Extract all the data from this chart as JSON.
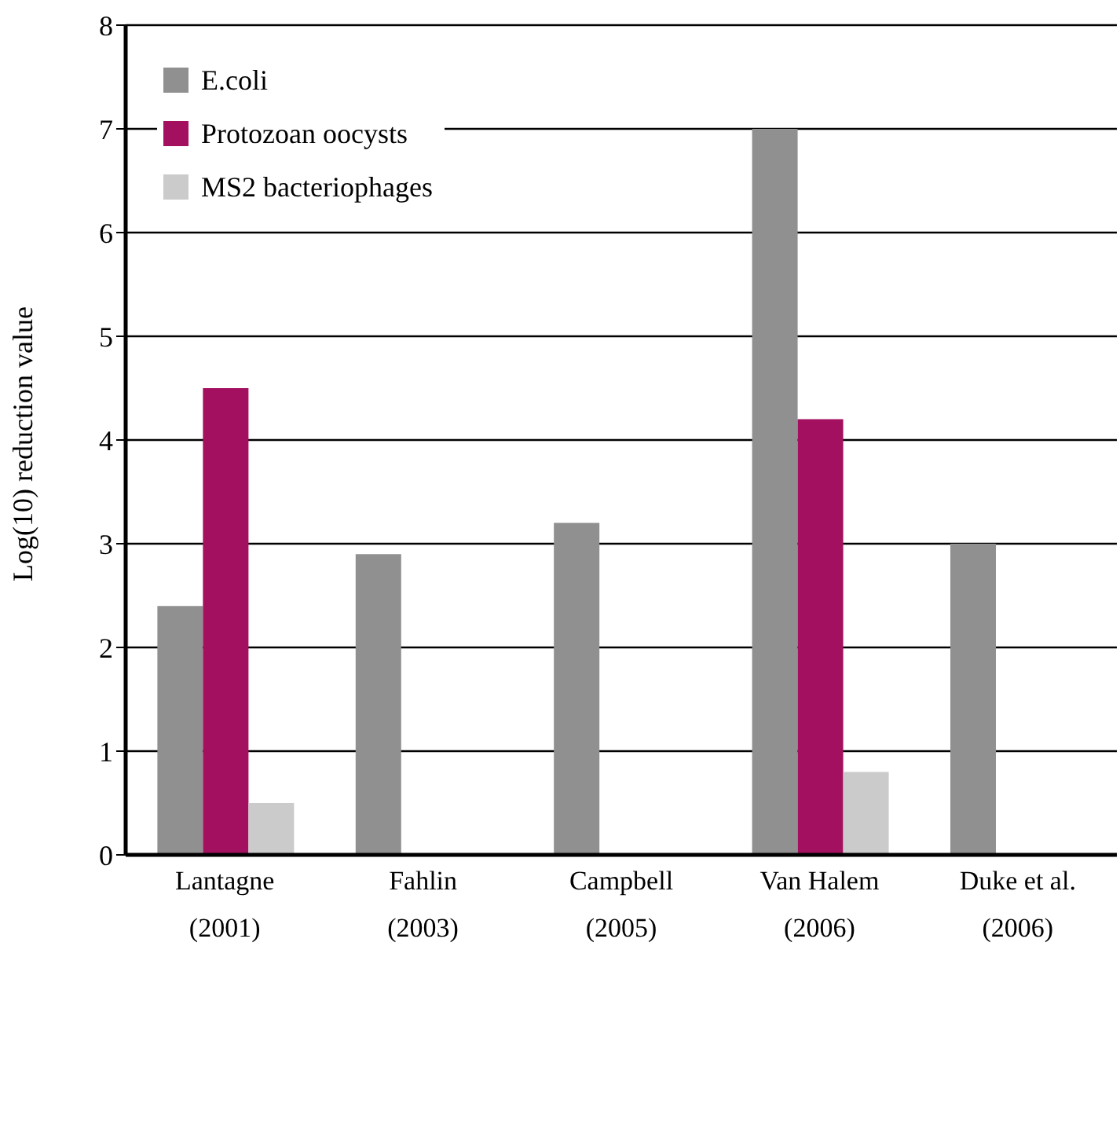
{
  "chart_data": {
    "type": "bar",
    "ylabel": "Log(10) reduction value",
    "categories": [
      "Lantagne\n(2001)",
      "Fahlin\n(2003)",
      "Campbell\n(2005)",
      "Van Halem\n(2006)",
      "Duke et al.\n(2006)"
    ],
    "series": [
      {
        "name": "E.coli",
        "color": "#909090",
        "values": [
          2.4,
          2.9,
          3.2,
          7.0,
          3.0
        ]
      },
      {
        "name": "Protozoan oocysts",
        "color": "#a31060",
        "values": [
          4.5,
          null,
          null,
          4.2,
          null
        ]
      },
      {
        "name": "MS2 bacteriophages",
        "color": "#cbcbcb",
        "values": [
          0.5,
          null,
          null,
          0.8,
          null
        ]
      }
    ],
    "ylim": [
      0,
      8
    ],
    "yticks": [
      0,
      1,
      2,
      3,
      4,
      5,
      6,
      7,
      8
    ],
    "grid": "y",
    "legend": "top left"
  }
}
